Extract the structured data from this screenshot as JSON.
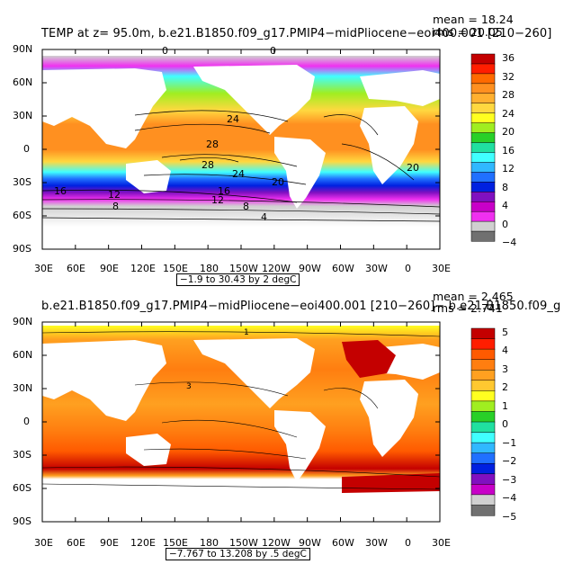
{
  "top_panel": {
    "title": "TEMP at z=  95.0m, b.e21.B1850.f09_g17.PMIP4−midPliocene−eoi400.001 [210−260]",
    "mean": "mean = 18.24",
    "rms": "rms = 20.05",
    "info": "−1.9 to 30.43 by 2 degC",
    "colorbar": {
      "labels": [
        "36",
        "32",
        "28",
        "24",
        "20",
        "16",
        "12",
        "8",
        "4",
        "0",
        "−4"
      ],
      "colors": [
        "#c40000",
        "#ff1e00",
        "#ff6a00",
        "#ff9020",
        "#ffb030",
        "#ffd840",
        "#ffff20",
        "#a0ee20",
        "#28d028",
        "#20e0a0",
        "#40ffff",
        "#30b8ff",
        "#2070ff",
        "#0020e0",
        "#8010c0",
        "#c800c8",
        "#f030f0",
        "#d0d0d0",
        "#707070"
      ]
    }
  },
  "bottom_panel": {
    "title": "b.e21.B1850.f09_g17.PMIP4−midPliocene−eoi400.001 [210−260]− b.e21.B1850.f09_g",
    "mean": "mean = 2.465",
    "rms": "rms = 2.741",
    "info": "−7.767 to 13.208 by .5 degC",
    "colorbar": {
      "labels": [
        "5",
        "4",
        "3",
        "2",
        "1",
        "0",
        "−1",
        "−2",
        "−3",
        "−4",
        "−5"
      ],
      "colors": [
        "#c40000",
        "#ff1e00",
        "#ff5a00",
        "#ff7e10",
        "#ffa020",
        "#ffc830",
        "#ffff20",
        "#a0ee20",
        "#28d028",
        "#20e0a0",
        "#40ffff",
        "#30b8ff",
        "#2070ff",
        "#0020e0",
        "#8010c0",
        "#c800c8",
        "#d0d0d0",
        "#707070"
      ]
    }
  },
  "axes": {
    "x_ticks": [
      "30E",
      "60E",
      "90E",
      "120E",
      "150E",
      "180",
      "150W",
      "120W",
      "90W",
      "60W",
      "30W",
      "0",
      "30E"
    ],
    "y_ticks": [
      "90N",
      "60N",
      "30N",
      "0",
      "30S",
      "60S",
      "90S"
    ]
  },
  "contour_labels_top": [
    "28",
    "28",
    "24",
    "24",
    "20",
    "20",
    "16",
    "16",
    "12",
    "12",
    "8",
    "8",
    "4",
    "0",
    "0"
  ],
  "contour_labels_bottom": [
    "3",
    "1"
  ]
}
